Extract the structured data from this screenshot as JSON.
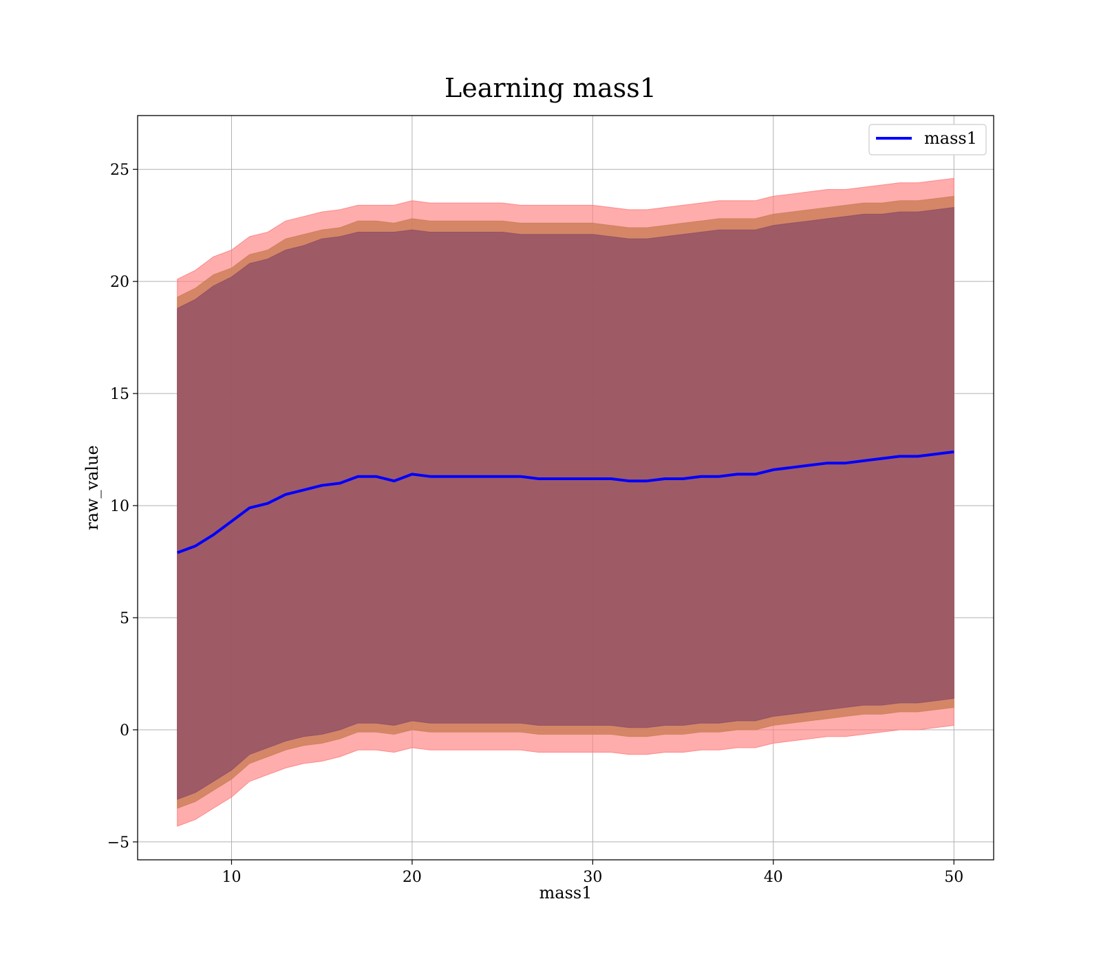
{
  "chart_data": {
    "type": "area",
    "title": "Learning mass1",
    "xlabel": "mass1",
    "ylabel": "raw_value",
    "xlim": [
      4.8,
      52.2
    ],
    "ylim": [
      -5.8,
      27.4
    ],
    "xticks": [
      10,
      20,
      30,
      40,
      50
    ],
    "yticks": [
      -5,
      0,
      5,
      10,
      15,
      20,
      25
    ],
    "xtick_labels": [
      "10",
      "20",
      "30",
      "40",
      "50"
    ],
    "ytick_labels": [
      "−5",
      "0",
      "5",
      "10",
      "15",
      "20",
      "25"
    ],
    "grid": true,
    "legend": {
      "placement": "upper-right",
      "entries": [
        "mass1"
      ]
    },
    "colors": {
      "line": "#0000ff",
      "outer_band": "#ff8080",
      "middle_band": "#cd7f5a",
      "inner_band": "#8e5066"
    },
    "x": [
      7,
      8,
      9,
      10,
      11,
      12,
      13,
      14,
      15,
      16,
      17,
      18,
      19,
      20,
      21,
      22,
      23,
      24,
      25,
      26,
      27,
      28,
      29,
      30,
      31,
      32,
      33,
      34,
      35,
      36,
      37,
      38,
      39,
      40,
      41,
      42,
      43,
      44,
      45,
      46,
      47,
      48,
      49,
      50
    ],
    "series": [
      {
        "name": "mass1",
        "values": [
          7.9,
          8.2,
          8.7,
          9.3,
          9.9,
          10.1,
          10.5,
          10.7,
          10.9,
          11.0,
          11.3,
          11.3,
          11.1,
          11.4,
          11.3,
          11.3,
          11.3,
          11.3,
          11.3,
          11.3,
          11.2,
          11.2,
          11.2,
          11.2,
          11.2,
          11.1,
          11.1,
          11.2,
          11.2,
          11.3,
          11.3,
          11.4,
          11.4,
          11.6,
          11.7,
          11.8,
          11.9,
          11.9,
          12.0,
          12.1,
          12.2,
          12.2,
          12.3,
          12.4
        ]
      }
    ],
    "bands": [
      {
        "name": "outer",
        "upper": [
          20.1,
          20.5,
          21.1,
          21.4,
          22.0,
          22.2,
          22.7,
          22.9,
          23.1,
          23.2,
          23.4,
          23.4,
          23.4,
          23.6,
          23.5,
          23.5,
          23.5,
          23.5,
          23.5,
          23.4,
          23.4,
          23.4,
          23.4,
          23.4,
          23.3,
          23.2,
          23.2,
          23.3,
          23.4,
          23.5,
          23.6,
          23.6,
          23.6,
          23.8,
          23.9,
          24.0,
          24.1,
          24.1,
          24.2,
          24.3,
          24.4,
          24.4,
          24.5,
          24.6
        ],
        "lower": [
          -4.3,
          -4.0,
          -3.5,
          -3.0,
          -2.3,
          -2.0,
          -1.7,
          -1.5,
          -1.4,
          -1.2,
          -0.9,
          -0.9,
          -1.0,
          -0.8,
          -0.9,
          -0.9,
          -0.9,
          -0.9,
          -0.9,
          -0.9,
          -1.0,
          -1.0,
          -1.0,
          -1.0,
          -1.0,
          -1.1,
          -1.1,
          -1.0,
          -1.0,
          -0.9,
          -0.9,
          -0.8,
          -0.8,
          -0.6,
          -0.5,
          -0.4,
          -0.3,
          -0.3,
          -0.2,
          -0.1,
          0.0,
          0.0,
          0.1,
          0.2
        ]
      },
      {
        "name": "middle",
        "upper": [
          19.3,
          19.7,
          20.3,
          20.6,
          21.2,
          21.4,
          21.9,
          22.1,
          22.3,
          22.4,
          22.7,
          22.7,
          22.6,
          22.8,
          22.7,
          22.7,
          22.7,
          22.7,
          22.7,
          22.6,
          22.6,
          22.6,
          22.6,
          22.6,
          22.5,
          22.4,
          22.4,
          22.5,
          22.6,
          22.7,
          22.8,
          22.8,
          22.8,
          23.0,
          23.1,
          23.2,
          23.3,
          23.4,
          23.5,
          23.5,
          23.6,
          23.6,
          23.7,
          23.8
        ],
        "lower": [
          -3.5,
          -3.2,
          -2.7,
          -2.2,
          -1.5,
          -1.2,
          -0.9,
          -0.7,
          -0.6,
          -0.4,
          -0.1,
          -0.1,
          -0.2,
          0.0,
          -0.1,
          -0.1,
          -0.1,
          -0.1,
          -0.1,
          -0.1,
          -0.2,
          -0.2,
          -0.2,
          -0.2,
          -0.2,
          -0.3,
          -0.3,
          -0.2,
          -0.2,
          -0.1,
          -0.1,
          0.0,
          0.0,
          0.2,
          0.3,
          0.4,
          0.5,
          0.6,
          0.7,
          0.7,
          0.8,
          0.8,
          0.9,
          1.0
        ]
      },
      {
        "name": "inner",
        "upper": [
          18.8,
          19.2,
          19.8,
          20.2,
          20.8,
          21.0,
          21.4,
          21.6,
          21.9,
          22.0,
          22.2,
          22.2,
          22.2,
          22.3,
          22.2,
          22.2,
          22.2,
          22.2,
          22.2,
          22.1,
          22.1,
          22.1,
          22.1,
          22.1,
          22.0,
          21.9,
          21.9,
          22.0,
          22.1,
          22.2,
          22.3,
          22.3,
          22.3,
          22.5,
          22.6,
          22.7,
          22.8,
          22.9,
          23.0,
          23.0,
          23.1,
          23.1,
          23.2,
          23.3
        ],
        "lower": [
          -3.1,
          -2.8,
          -2.3,
          -1.8,
          -1.1,
          -0.8,
          -0.5,
          -0.3,
          -0.2,
          0.0,
          0.3,
          0.3,
          0.2,
          0.4,
          0.3,
          0.3,
          0.3,
          0.3,
          0.3,
          0.3,
          0.2,
          0.2,
          0.2,
          0.2,
          0.2,
          0.1,
          0.1,
          0.2,
          0.2,
          0.3,
          0.3,
          0.4,
          0.4,
          0.6,
          0.7,
          0.8,
          0.9,
          1.0,
          1.1,
          1.1,
          1.2,
          1.2,
          1.3,
          1.4
        ]
      }
    ]
  }
}
